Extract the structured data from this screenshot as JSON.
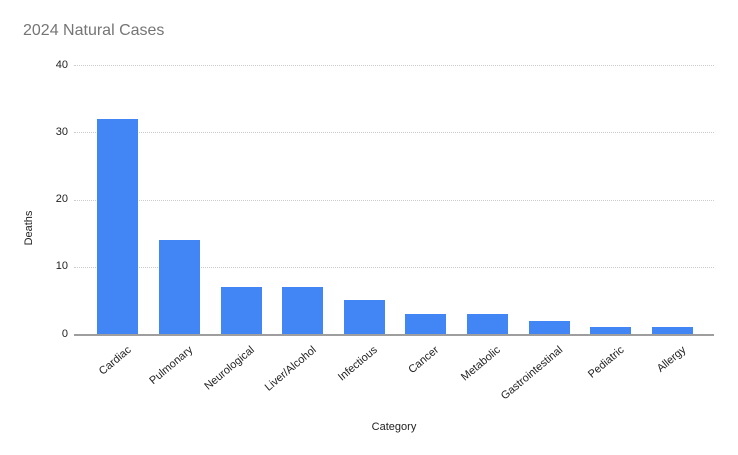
{
  "chart_data": {
    "type": "bar",
    "title": "2024 Natural Cases",
    "xlabel": "Category",
    "ylabel": "Deaths",
    "categories": [
      "Cardiac",
      "Pulmonary",
      "Neurological",
      "Liver/Alcohol",
      "Infectious",
      "Cancer",
      "Metabolic",
      "Gastrointestinal",
      "Pediatric",
      "Allergy"
    ],
    "values": [
      32,
      14,
      7,
      7,
      5,
      3,
      3,
      2,
      1,
      1
    ],
    "ylim": [
      0,
      40
    ],
    "yticks": [
      0,
      10,
      20,
      30,
      40
    ],
    "grid": "horizontal-dotted",
    "legend": "none",
    "x_tick_rotation_deg": -40
  },
  "colors": {
    "background": "#ffffff",
    "bar": "#4285f4",
    "title": "#757575",
    "axis_title": "#222222",
    "tick_label": "#222222",
    "gridline": "#cccccc",
    "baseline": "#9e9e9e"
  }
}
